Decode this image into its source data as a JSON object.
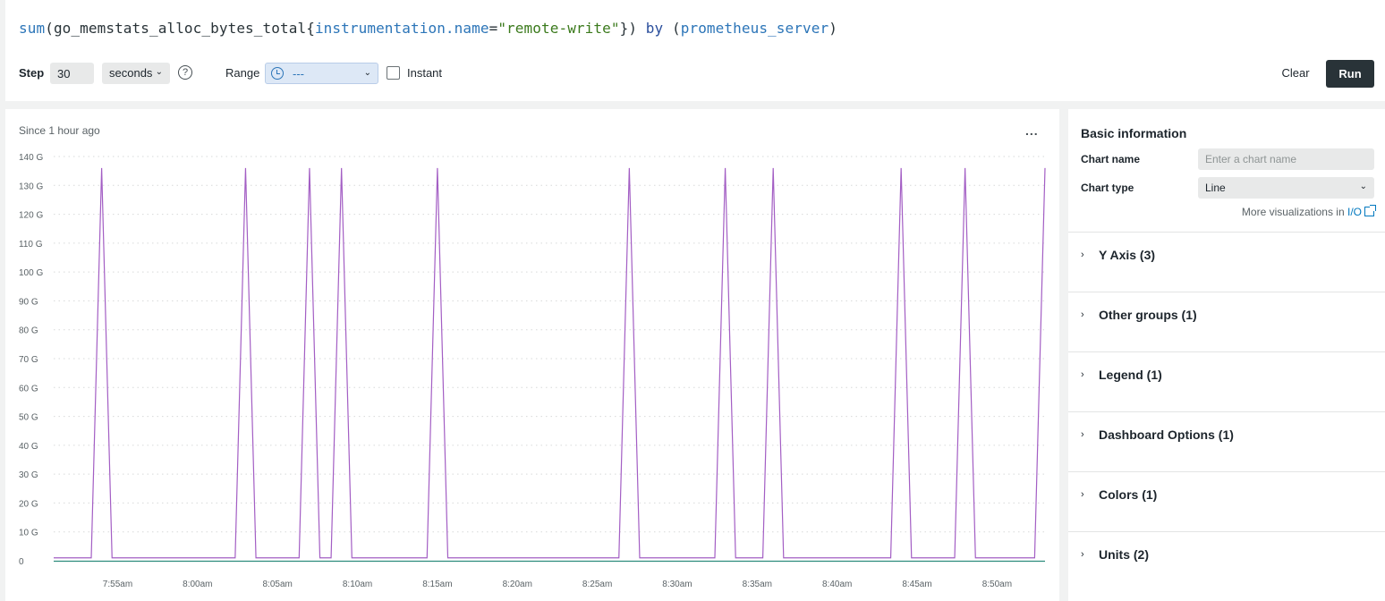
{
  "query": {
    "fn": "sum",
    "open_paren": "(",
    "metric": "go_memstats_alloc_bytes_total",
    "open_brace": "{",
    "label_key": "instrumentation.name",
    "eq": "=",
    "label_value": "\"remote-write\"",
    "close": "})",
    "by_kw": " by ",
    "group_open": "(",
    "group_label": "prometheus_server",
    "group_close": ")"
  },
  "controls": {
    "step_label": "Step",
    "step_value": "30",
    "unit_value": "seconds",
    "help_glyph": "?",
    "range_label": "Range",
    "range_value": "---",
    "instant_label": "Instant",
    "clear_label": "Clear",
    "run_label": "Run"
  },
  "chart": {
    "since_text": "Since 1 hour ago",
    "more_glyph": "..."
  },
  "sidebar": {
    "basic_title": "Basic information",
    "chart_name_label": "Chart name",
    "chart_name_placeholder": "Enter a chart name",
    "chart_type_label": "Chart type",
    "chart_type_value": "Line",
    "more_viz_prefix": "More visualizations in ",
    "more_viz_link": "I/O",
    "sections": [
      {
        "label": "Y Axis (3)"
      },
      {
        "label": "Other groups (1)"
      },
      {
        "label": "Legend (1)"
      },
      {
        "label": "Dashboard Options (1)"
      },
      {
        "label": "Colors (1)"
      },
      {
        "label": "Units (2)"
      }
    ]
  },
  "chart_data": {
    "type": "line",
    "title": "",
    "xlabel": "",
    "ylabel": "",
    "ylim": [
      0,
      140
    ],
    "y_ticks": [
      {
        "value": 0,
        "label": "0"
      },
      {
        "value": 10,
        "label": "10 G"
      },
      {
        "value": 20,
        "label": "20 G"
      },
      {
        "value": 30,
        "label": "30 G"
      },
      {
        "value": 40,
        "label": "40 G"
      },
      {
        "value": 50,
        "label": "50 G"
      },
      {
        "value": 60,
        "label": "60 G"
      },
      {
        "value": 70,
        "label": "70 G"
      },
      {
        "value": 80,
        "label": "80 G"
      },
      {
        "value": 90,
        "label": "90 G"
      },
      {
        "value": 100,
        "label": "100 G"
      },
      {
        "value": 110,
        "label": "110 G"
      },
      {
        "value": 120,
        "label": "120 G"
      },
      {
        "value": 130,
        "label": "130 G"
      },
      {
        "value": 140,
        "label": "140 G"
      }
    ],
    "xlim_min": [
      "7:51",
      "8:53"
    ],
    "x_ticks": [
      {
        "t": "7:55",
        "label": "7:55am"
      },
      {
        "t": "8:00",
        "label": "8:00am"
      },
      {
        "t": "8:05",
        "label": "8:05am"
      },
      {
        "t": "8:10",
        "label": "8:10am"
      },
      {
        "t": "8:15",
        "label": "8:15am"
      },
      {
        "t": "8:20",
        "label": "8:20am"
      },
      {
        "t": "8:25",
        "label": "8:25am"
      },
      {
        "t": "8:30",
        "label": "8:30am"
      },
      {
        "t": "8:35",
        "label": "8:35am"
      },
      {
        "t": "8:40",
        "label": "8:40am"
      },
      {
        "t": "8:45",
        "label": "8:45am"
      },
      {
        "t": "8:50",
        "label": "8:50am"
      }
    ],
    "grid": true,
    "legend": "none",
    "series": [
      {
        "color": "#a35ec4",
        "peaks": [
          "7:54",
          "8:03",
          "8:07",
          "8:09",
          "8:15",
          "8:27",
          "8:33",
          "8:36",
          "8:44",
          "8:48",
          "8:53"
        ],
        "peak_value": 136,
        "baseline": 1
      },
      {
        "color": "#2c8c7c",
        "baseline": 0
      }
    ]
  }
}
